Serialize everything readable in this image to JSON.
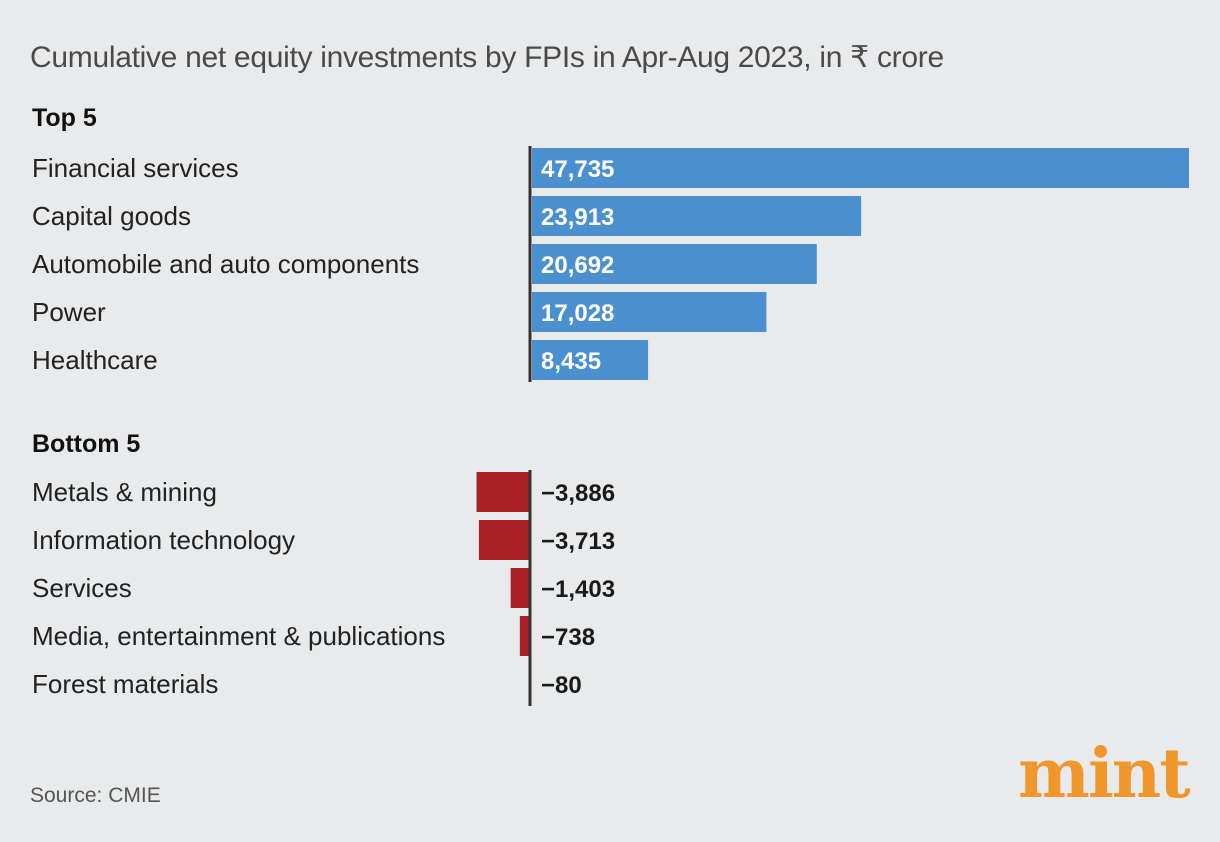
{
  "title": "Cumulative net equity investments by FPIs in Apr-Aug 2023, in ₹ crore",
  "source": "Source: CMIE",
  "logo": "mint",
  "colors": {
    "positive": "#4a90cf",
    "negative": "#a81f24",
    "axis": "#333333",
    "background": "#e8eaeb",
    "logo": "#f0962a"
  },
  "chart_data": {
    "type": "bar",
    "orientation": "horizontal",
    "grid": false,
    "groups": [
      {
        "heading": "Top 5",
        "categories": [
          "Financial services",
          "Capital goods",
          "Automobile and auto components",
          "Power",
          "Healthcare"
        ],
        "values": [
          47735,
          23913,
          20692,
          17028,
          8435
        ],
        "labels": [
          "47,735",
          "23,913",
          "20,692",
          "17,028",
          "8,435"
        ]
      },
      {
        "heading": "Bottom 5",
        "categories": [
          "Metals & mining",
          "Information technology",
          "Services",
          "Media, entertainment & publications",
          "Forest materials"
        ],
        "values": [
          -3886,
          -3713,
          -1403,
          -738,
          -80
        ],
        "labels": [
          "−3,886",
          "−3,713",
          "−1,403",
          "−738",
          "−80"
        ]
      }
    ]
  }
}
